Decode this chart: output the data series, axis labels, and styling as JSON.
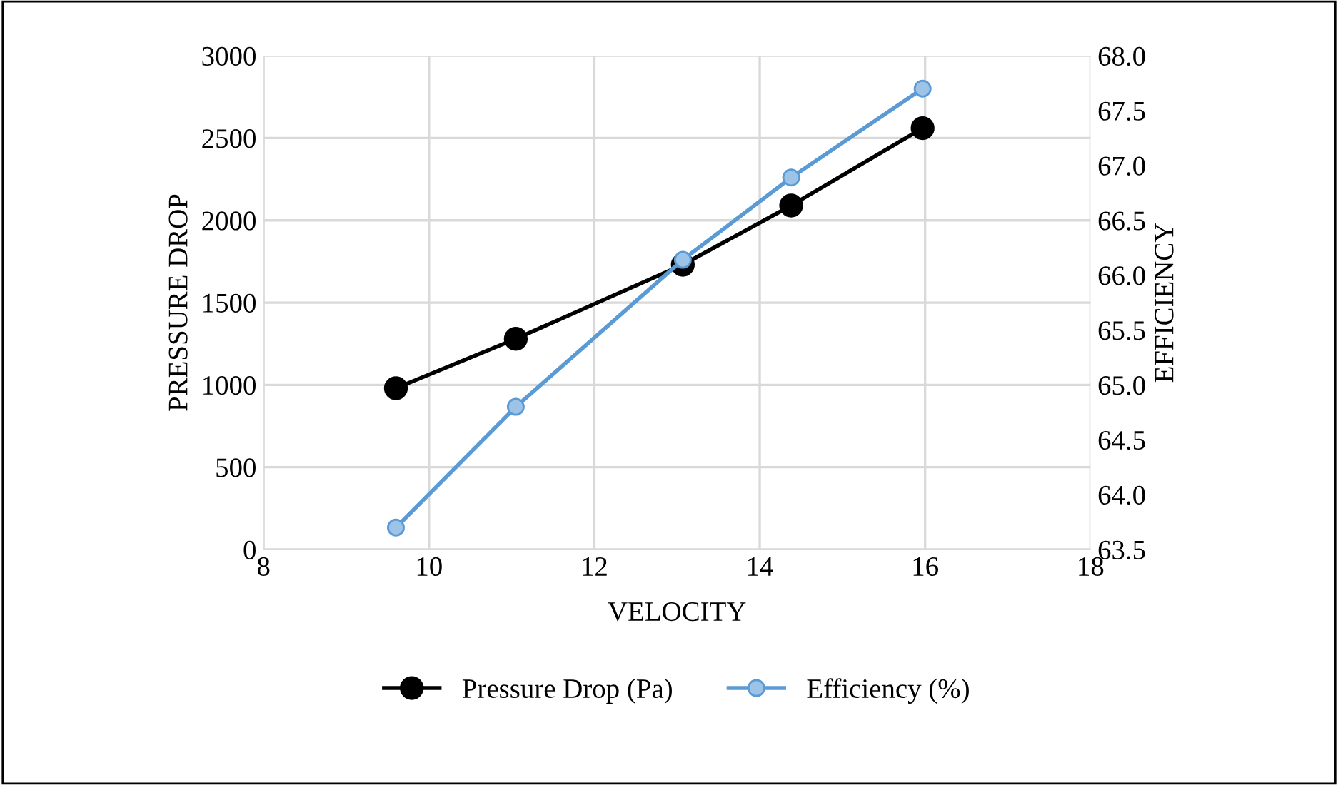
{
  "chart_data": {
    "type": "line",
    "xlabel": "VELOCITY",
    "ylabel": "PRESSURE DROP",
    "y2label": "EFFICIENCY",
    "xlim": [
      8,
      18
    ],
    "xticks": [
      8,
      10,
      12,
      14,
      16,
      18
    ],
    "ylim": [
      0,
      3000
    ],
    "yticks": [
      0,
      500,
      1000,
      1500,
      2000,
      2500,
      3000
    ],
    "y2lim": [
      63.5,
      68.0
    ],
    "y2ticks": [
      {
        "value": 63.5,
        "label": "63.5"
      },
      {
        "value": 64.0,
        "label": "64.0"
      },
      {
        "value": 64.5,
        "label": "64.5"
      },
      {
        "value": 65.0,
        "label": "65.0"
      },
      {
        "value": 65.5,
        "label": "65.5"
      },
      {
        "value": 66.0,
        "label": "66.0"
      },
      {
        "value": 66.5,
        "label": "66.5"
      },
      {
        "value": 67.0,
        "label": "67.0"
      },
      {
        "value": 67.5,
        "label": "67.5"
      },
      {
        "value": 68.0,
        "label": "68.0"
      }
    ],
    "grid": true,
    "legend": "bottom",
    "marker": "circle",
    "line_style": "solid",
    "x": [
      9.6,
      11.05,
      13.07,
      14.38,
      15.97
    ],
    "series": [
      {
        "name": "Pressure Drop (Pa)",
        "color": "#000000",
        "values": [
          980,
          1280,
          1730,
          2090,
          2560
        ]
      },
      {
        "name": "Efficiency (%)",
        "color": "#5b9bd5",
        "axis": "y2",
        "values": [
          63.7,
          64.8,
          66.14,
          66.89,
          67.7
        ]
      }
    ]
  }
}
